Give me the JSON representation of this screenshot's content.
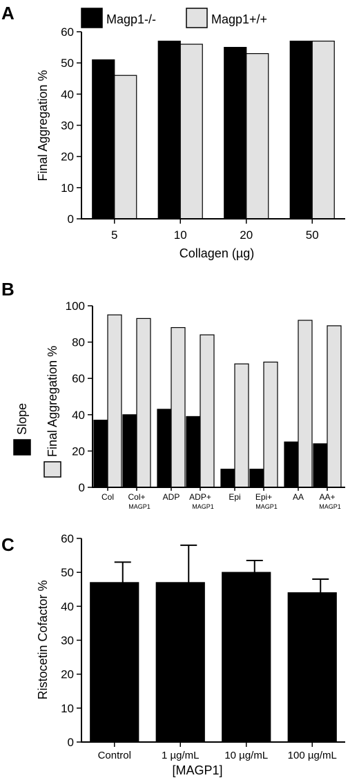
{
  "colors": {
    "knockout": "#000000",
    "wildtype": "#e2e2e2",
    "edge": "#000000"
  },
  "chart_data": [
    {
      "panel": "A",
      "type": "bar",
      "categories": [
        "5",
        "10",
        "20",
        "50"
      ],
      "series": [
        {
          "name": "Magp1-/-",
          "values": [
            51,
            57,
            55,
            57
          ]
        },
        {
          "name": "Magp1+/+",
          "values": [
            46,
            56,
            53,
            57
          ]
        }
      ],
      "xlabel": "Collagen (µg)",
      "ylabel": "Final Aggregation %",
      "ylim": [
        0,
        60
      ],
      "yticks": [
        0,
        10,
        20,
        30,
        40,
        50,
        60
      ],
      "legend_position": "top"
    },
    {
      "panel": "B",
      "type": "bar",
      "categories": [
        {
          "label": "Col",
          "sub": ""
        },
        {
          "label": "Col+",
          "sub": "MAGP1"
        },
        {
          "label": "ADP",
          "sub": ""
        },
        {
          "label": "ADP+",
          "sub": "MAGP1"
        },
        {
          "label": "Epi",
          "sub": ""
        },
        {
          "label": "Epi+",
          "sub": "MAGP1"
        },
        {
          "label": "AA",
          "sub": ""
        },
        {
          "label": "AA+",
          "sub": "MAGP1"
        }
      ],
      "series": [
        {
          "name": "Slope",
          "values": [
            37,
            40,
            43,
            39,
            10,
            10,
            25,
            24
          ]
        },
        {
          "name": "Final Aggregation %",
          "values": [
            95,
            93,
            88,
            84,
            68,
            69,
            92,
            89
          ]
        }
      ],
      "ylim": [
        0,
        100
      ],
      "yticks": [
        0,
        20,
        40,
        60,
        80,
        100
      ],
      "legend_position": "left"
    },
    {
      "panel": "C",
      "type": "bar",
      "categories": [
        "Control",
        "1 µg/mL",
        "10 µg/mL",
        "100 µg/mL"
      ],
      "values": [
        47,
        47,
        50,
        44
      ],
      "errors": [
        6,
        11,
        3.5,
        4
      ],
      "xlabel": "[MAGP1]",
      "ylabel": "Ristocetin Cofactor %",
      "ylim": [
        0,
        60
      ],
      "yticks": [
        0,
        10,
        20,
        30,
        40,
        50,
        60
      ]
    }
  ]
}
